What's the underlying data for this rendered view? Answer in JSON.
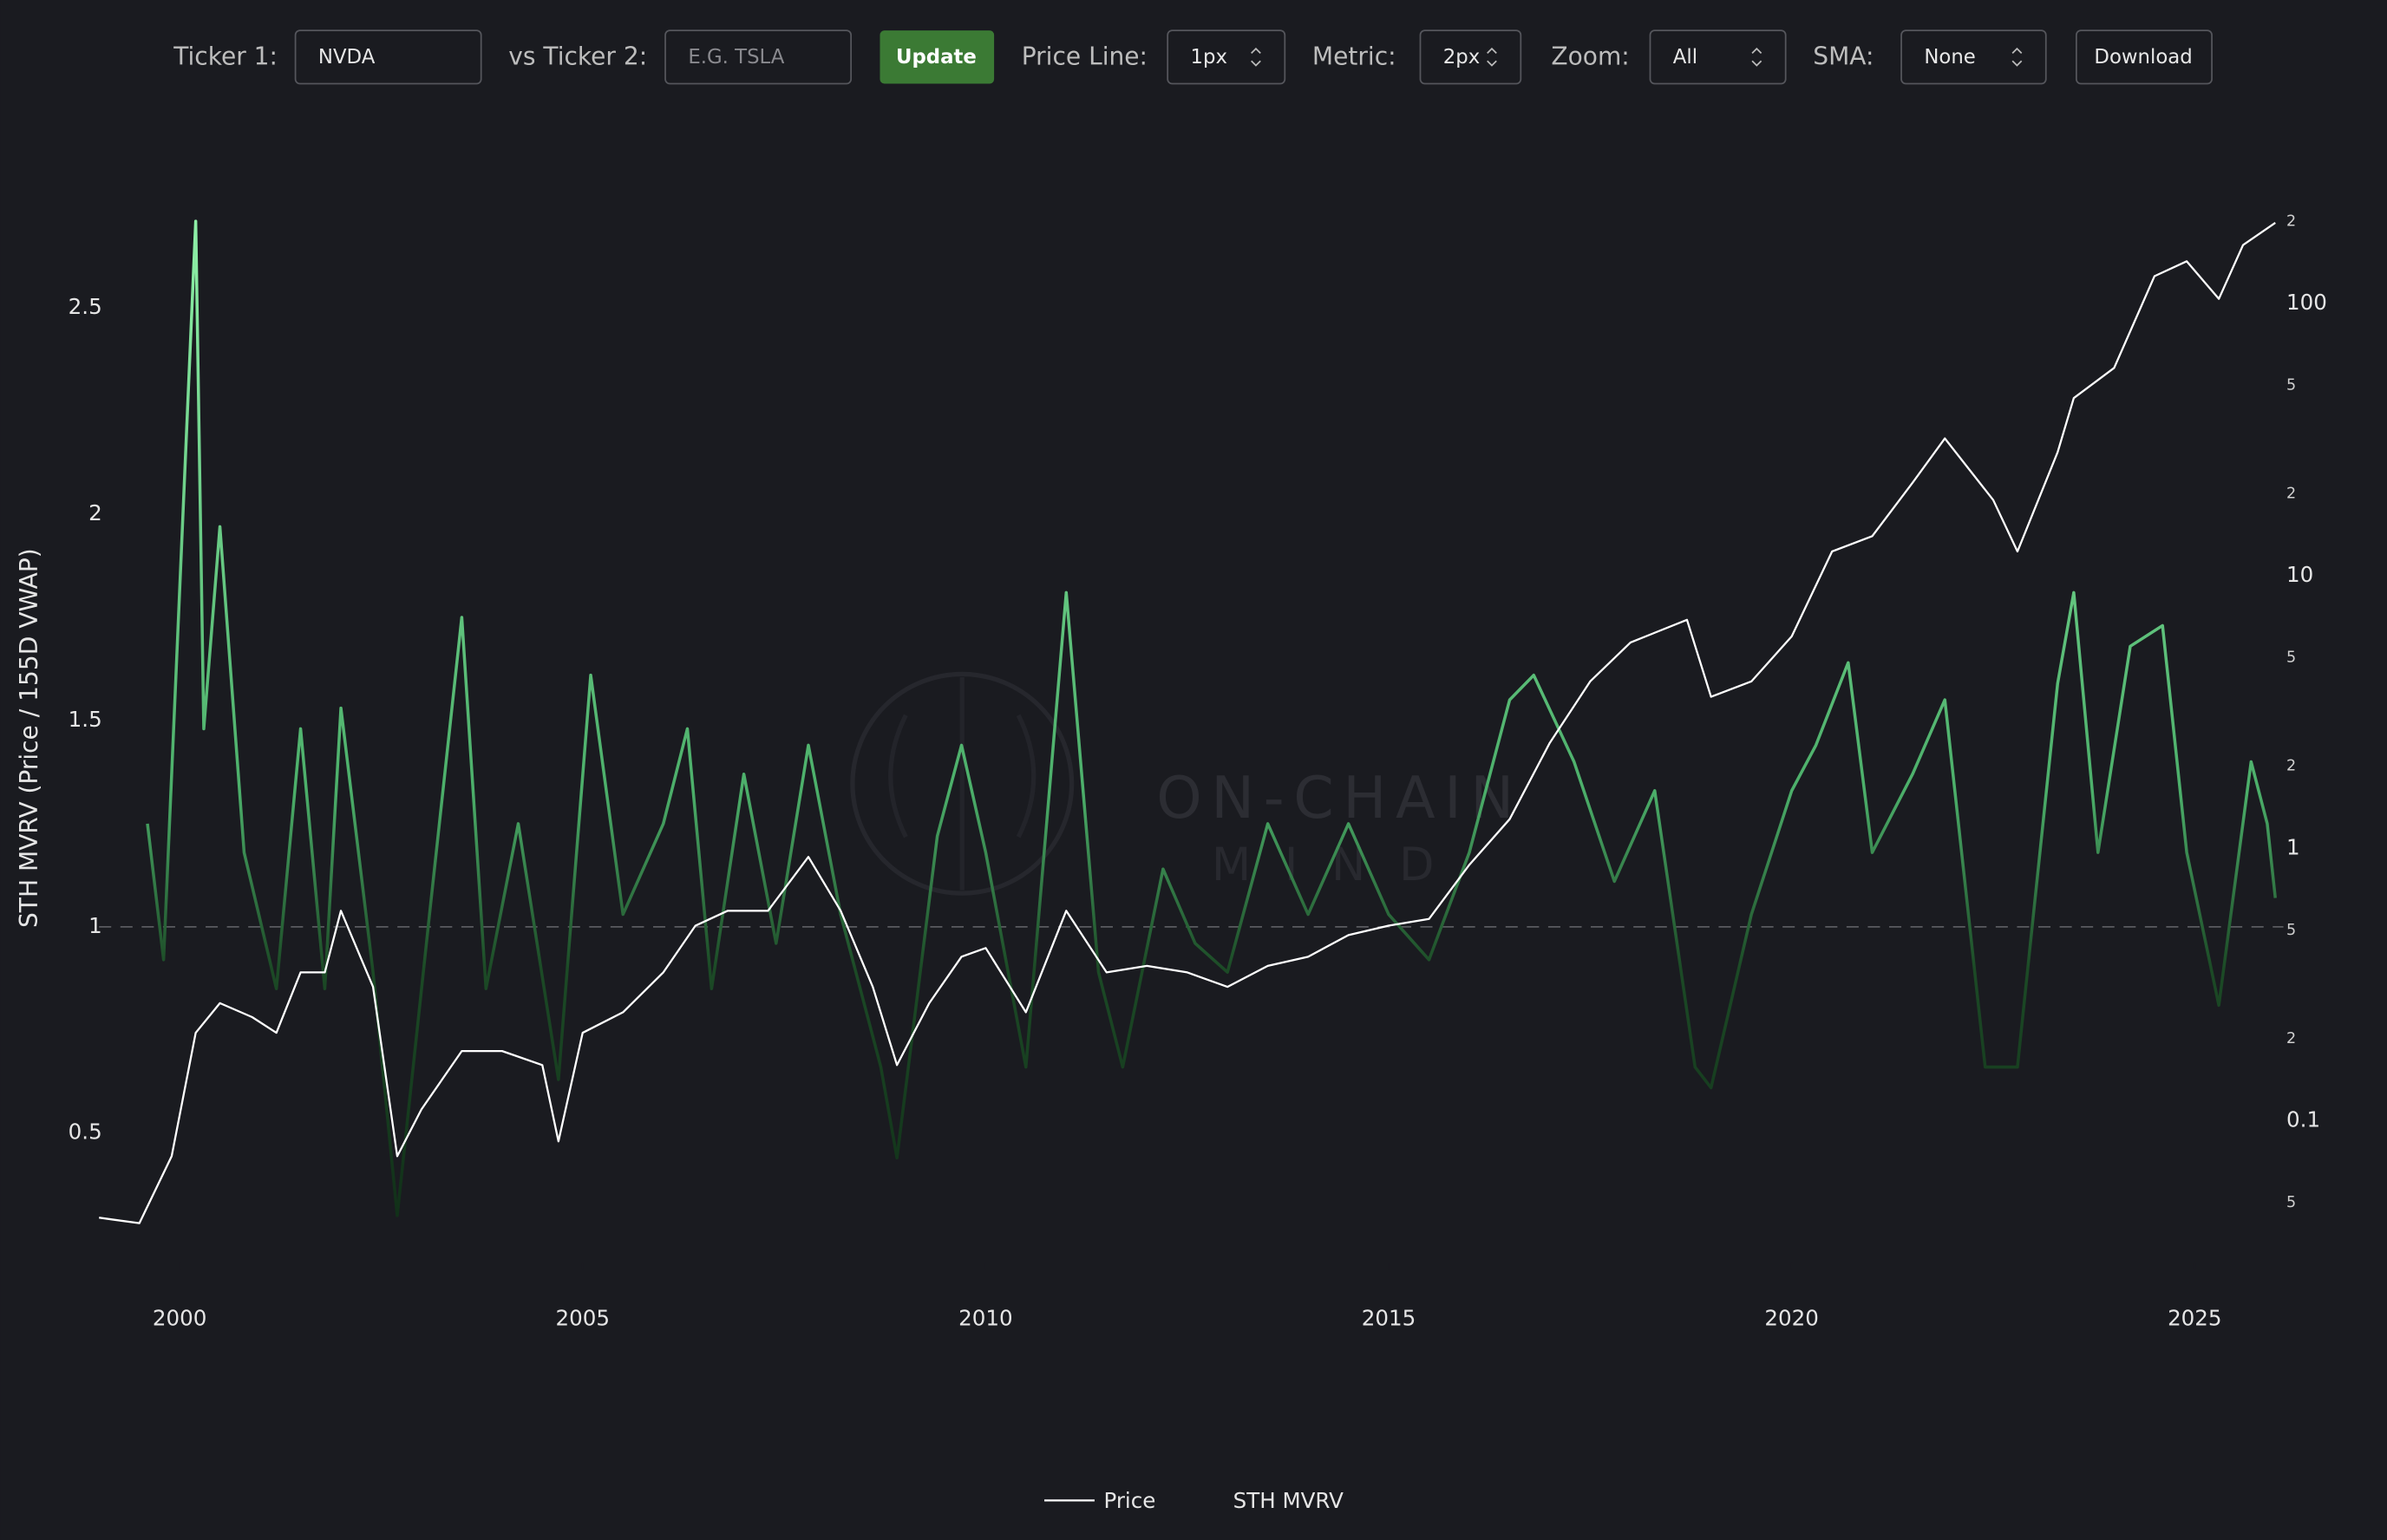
{
  "controls": {
    "ticker1_label": "Ticker 1:",
    "ticker1_value": "NVDA",
    "ticker2_label": "vs Ticker 2:",
    "ticker2_placeholder": "E.G. TSLA",
    "update_button": "Update",
    "price_line_label": "Price Line:",
    "price_line_value": "1px",
    "metric_label": "Metric:",
    "metric_value": "2px",
    "zoom_label": "Zoom:",
    "zoom_value": "All",
    "sma_label": "SMA:",
    "sma_value": "None",
    "download_button": "Download"
  },
  "watermark": {
    "line1": "ON-CHAIN",
    "line2": "MIND"
  },
  "chart_data": {
    "type": "line",
    "y_label": "STH MVRV (Price / 155D VWAP)",
    "xlim": [
      1999,
      2026.1
    ],
    "xticks": [
      2000,
      2005,
      2010,
      2015,
      2020,
      2025
    ],
    "ylim": [
      0.185,
      2.73
    ],
    "yticks": [
      0.5,
      1,
      1.5,
      2,
      2.5
    ],
    "y2lim": [
      0.03,
      215
    ],
    "y2_log": true,
    "y2ticks": [
      {
        "value": 0.05,
        "label": "5"
      },
      0.1,
      {
        "value": 0.2,
        "label": "2"
      },
      {
        "value": 0.5,
        "label": "5"
      },
      1,
      {
        "value": 2,
        "label": "2"
      },
      {
        "value": 5,
        "label": "5"
      },
      10,
      {
        "value": 20,
        "label": "2"
      },
      {
        "value": 50,
        "label": "5"
      },
      100,
      {
        "value": 200,
        "label": "2"
      }
    ],
    "hline": 1,
    "legend": "bottom",
    "series": [
      {
        "name": "Price",
        "color": "#ffffff",
        "axis": "y2",
        "x": [
          1999.0,
          1999.5,
          1999.9,
          2000.2,
          2000.5,
          2000.9,
          2001.2,
          2001.5,
          2001.8,
          2002.0,
          2002.4,
          2002.7,
          2003.0,
          2003.5,
          2004.0,
          2004.5,
          2004.7,
          2005.0,
          2005.5,
          2006.0,
          2006.4,
          2006.8,
          2007.3,
          2007.8,
          2008.2,
          2008.6,
          2008.9,
          2009.3,
          2009.7,
          2010.0,
          2010.5,
          2011.0,
          2011.5,
          2012.0,
          2012.5,
          2013.0,
          2013.5,
          2014.0,
          2014.5,
          2015.0,
          2015.5,
          2016.0,
          2016.5,
          2017.0,
          2017.5,
          2018.0,
          2018.7,
          2019.0,
          2019.5,
          2020.0,
          2020.5,
          2021.0,
          2021.5,
          2021.9,
          2022.5,
          2022.8,
          2023.3,
          2023.5,
          2024.0,
          2024.5,
          2024.9,
          2025.3,
          2025.6,
          2026.0
        ],
        "values": [
          0.044,
          0.042,
          0.074,
          0.21,
          0.27,
          0.24,
          0.21,
          0.35,
          0.35,
          0.59,
          0.31,
          0.074,
          0.11,
          0.18,
          0.18,
          0.16,
          0.084,
          0.21,
          0.25,
          0.35,
          0.52,
          0.59,
          0.59,
          0.93,
          0.59,
          0.31,
          0.16,
          0.27,
          0.4,
          0.43,
          0.25,
          0.59,
          0.35,
          0.37,
          0.35,
          0.31,
          0.37,
          0.4,
          0.48,
          0.52,
          0.55,
          0.87,
          1.28,
          2.44,
          4.1,
          5.7,
          6.9,
          3.6,
          4.1,
          6.0,
          12.3,
          14.0,
          22,
          32,
          19,
          12.3,
          28.5,
          45,
          58,
          126,
          143,
          104,
          164,
          198
        ]
      },
      {
        "name": "STH MVRV",
        "color": "#4caf6a",
        "axis": "y",
        "x": [
          1999.6,
          1999.8,
          2000.2,
          2000.3,
          2000.5,
          2000.8,
          2001.2,
          2001.5,
          2001.8,
          2002.0,
          2002.4,
          2002.7,
          2003.1,
          2003.5,
          2003.8,
          2004.2,
          2004.7,
          2005.1,
          2005.5,
          2006.0,
          2006.3,
          2006.6,
          2007.0,
          2007.4,
          2007.8,
          2008.2,
          2008.7,
          2008.9,
          2009.4,
          2009.7,
          2010.0,
          2010.5,
          2011.0,
          2011.4,
          2011.7,
          2012.2,
          2012.6,
          2013.0,
          2013.5,
          2014.0,
          2014.5,
          2015.0,
          2015.5,
          2016.0,
          2016.5,
          2016.8,
          2017.3,
          2017.8,
          2018.3,
          2018.8,
          2019.0,
          2019.5,
          2020.0,
          2020.3,
          2020.7,
          2021.0,
          2021.5,
          2021.9,
          2022.4,
          2022.8,
          2023.3,
          2023.5,
          2023.8,
          2024.2,
          2024.6,
          2024.9,
          2025.3,
          2025.7,
          2025.9,
          2026.0
        ],
        "values": [
          1.25,
          0.92,
          2.71,
          1.48,
          1.97,
          1.18,
          0.85,
          1.48,
          0.85,
          1.53,
          0.89,
          0.3,
          1.03,
          1.75,
          0.85,
          1.25,
          0.63,
          1.61,
          1.03,
          1.25,
          1.48,
          0.85,
          1.37,
          0.96,
          1.44,
          1.03,
          0.66,
          0.44,
          1.22,
          1.44,
          1.18,
          0.66,
          1.81,
          0.89,
          0.66,
          1.14,
          0.96,
          0.89,
          1.25,
          1.03,
          1.25,
          1.03,
          0.92,
          1.18,
          1.55,
          1.61,
          1.4,
          1.11,
          1.33,
          0.66,
          0.61,
          1.03,
          1.33,
          1.44,
          1.64,
          1.18,
          1.37,
          1.55,
          0.66,
          0.66,
          1.59,
          1.81,
          1.18,
          1.68,
          1.73,
          1.18,
          0.81,
          1.4,
          1.25,
          1.07
        ]
      }
    ]
  }
}
